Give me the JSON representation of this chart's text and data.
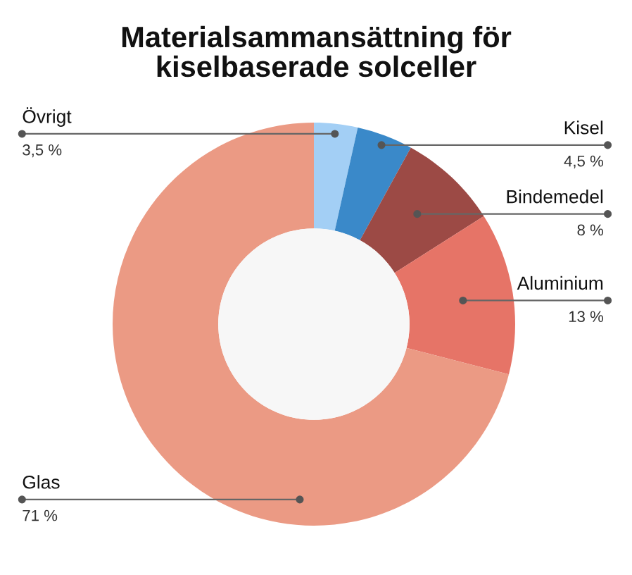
{
  "chart_data": {
    "type": "donut",
    "title": "Materialsammansättning för\nkiselbaserade solceller",
    "categories": [
      "Övrigt",
      "Kisel",
      "Bindemedel",
      "Aluminium",
      "Glas"
    ],
    "values": [
      3.5,
      4.5,
      8,
      13,
      71
    ],
    "value_labels": [
      "3,5 %",
      "4,5 %",
      "8 %",
      "13 %",
      "71 %"
    ],
    "colors": [
      "#a3cff5",
      "#3a89c9",
      "#9c4a45",
      "#e67467",
      "#eb9a84"
    ]
  }
}
